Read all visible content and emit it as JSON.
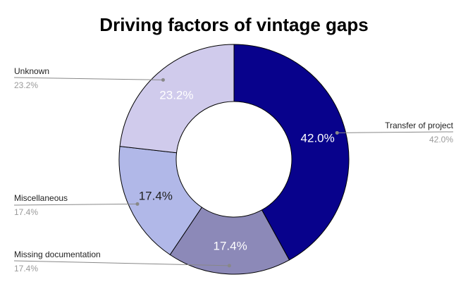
{
  "chart_data": {
    "type": "pie",
    "donut": true,
    "title": "Driving factors of vintage gaps",
    "categories": [
      "Transfer of project",
      "Missing documentation",
      "Miscellaneous",
      "Unknown"
    ],
    "values": [
      42.0,
      17.4,
      17.4,
      23.2
    ],
    "value_labels": [
      "42.0%",
      "17.4%",
      "17.4%",
      "23.2%"
    ],
    "colors": [
      "#08028c",
      "#8c89b8",
      "#b1b8e8",
      "#d0cbec"
    ],
    "label_colors": [
      "#ffffff",
      "#ffffff",
      "#222222",
      "#ffffff"
    ],
    "legend": "callouts"
  }
}
